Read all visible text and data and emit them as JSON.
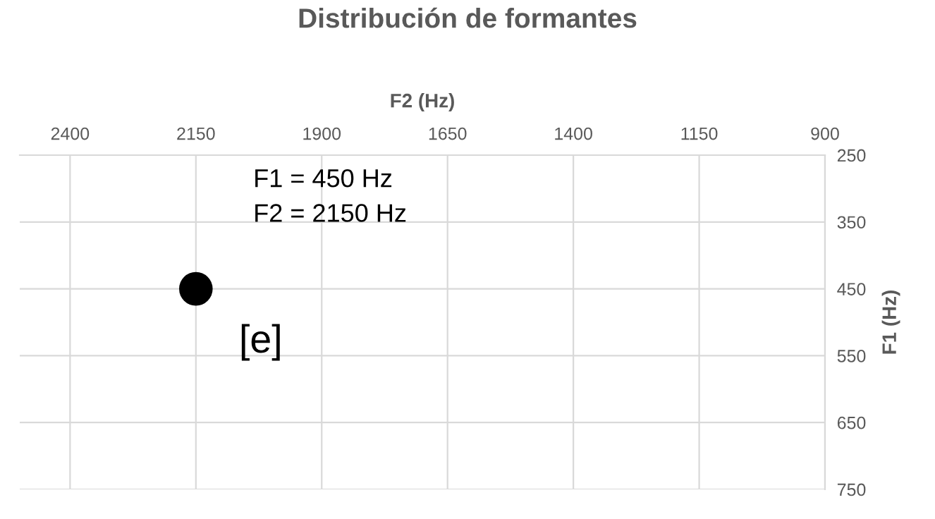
{
  "chart_data": {
    "type": "scatter",
    "title": "Distribución de formantes",
    "xlabel": "F2 (Hz)",
    "ylabel": "F1 (Hz)",
    "x": [
      2150
    ],
    "series": [
      {
        "color": "#000000",
        "values": [
          450
        ]
      }
    ],
    "xlim": [
      2500,
      900
    ],
    "xticks": [
      2400,
      2150,
      1900,
      1650,
      1400,
      1150,
      900
    ],
    "ylim": [
      750,
      250
    ],
    "yticks": [
      250,
      350,
      450,
      550,
      650,
      750
    ],
    "grid": true,
    "marker": "circle",
    "legend": false,
    "annotations": [
      "F1 = 450 Hz\nF2 = 2150 Hz",
      {
        "text": "[e]",
        "x": 2150,
        "y": 450
      }
    ]
  }
}
